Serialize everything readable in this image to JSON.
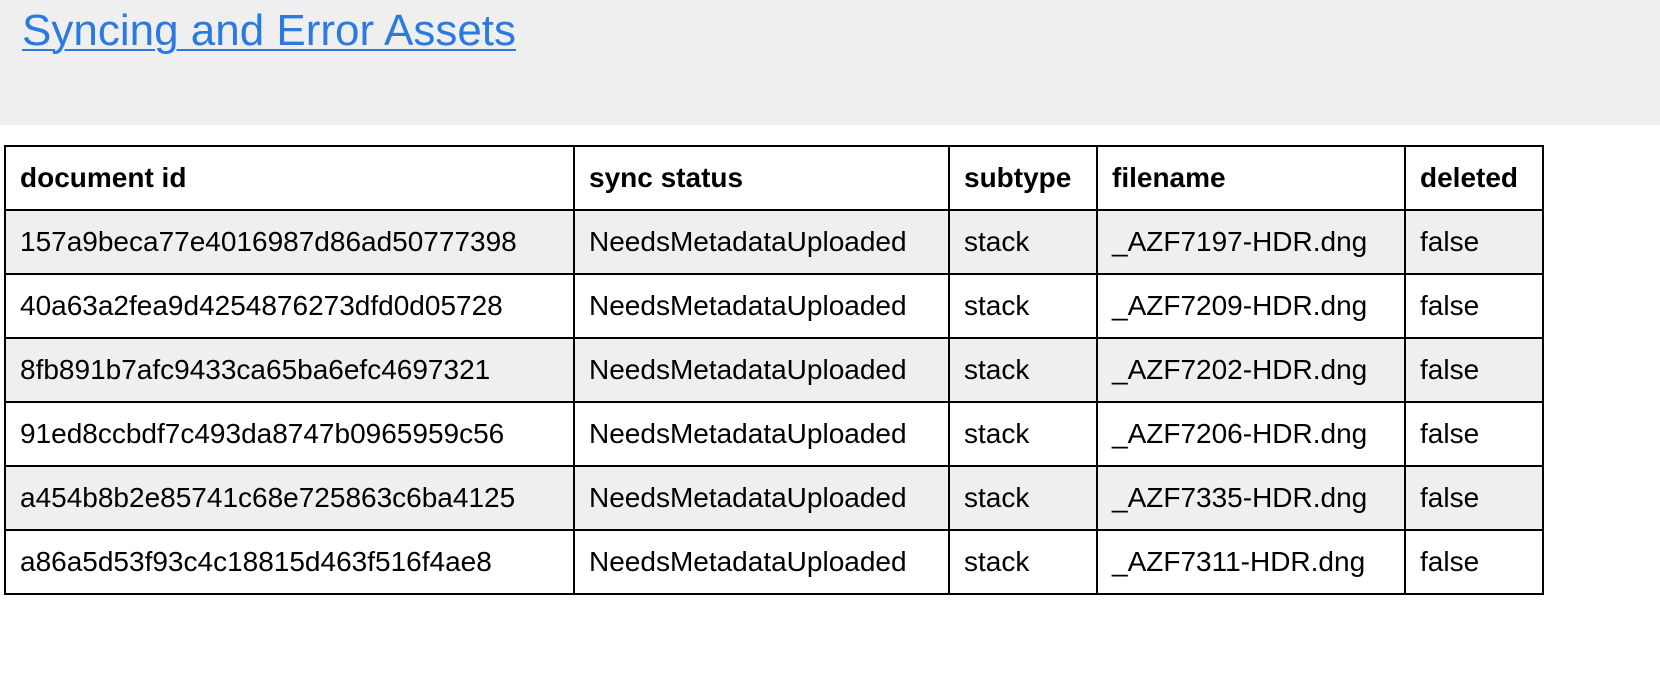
{
  "header": {
    "title": "Syncing and Error Assets",
    "link_color": "#2a7ae2"
  },
  "table": {
    "columns": [
      "document id",
      "sync status",
      "subtype",
      "filename",
      "deleted"
    ],
    "rows": [
      [
        "157a9beca77e4016987d86ad50777398",
        "NeedsMetadataUploaded",
        "stack",
        "_AZF7197-HDR.dng",
        "false"
      ],
      [
        "40a63a2fea9d4254876273dfd0d05728",
        "NeedsMetadataUploaded",
        "stack",
        "_AZF7209-HDR.dng",
        "false"
      ],
      [
        "8fb891b7afc9433ca65ba6efc4697321",
        "NeedsMetadataUploaded",
        "stack",
        "_AZF7202-HDR.dng",
        "false"
      ],
      [
        "91ed8ccbdf7c493da8747b0965959c56",
        "NeedsMetadataUploaded",
        "stack",
        "_AZF7206-HDR.dng",
        "false"
      ],
      [
        "a454b8b2e85741c68e725863c6ba4125",
        "NeedsMetadataUploaded",
        "stack",
        "_AZF7335-HDR.dng",
        "false"
      ],
      [
        "a86a5d53f93c4c18815d463f516f4ae8",
        "NeedsMetadataUploaded",
        "stack",
        "_AZF7311-HDR.dng",
        "false"
      ]
    ]
  }
}
